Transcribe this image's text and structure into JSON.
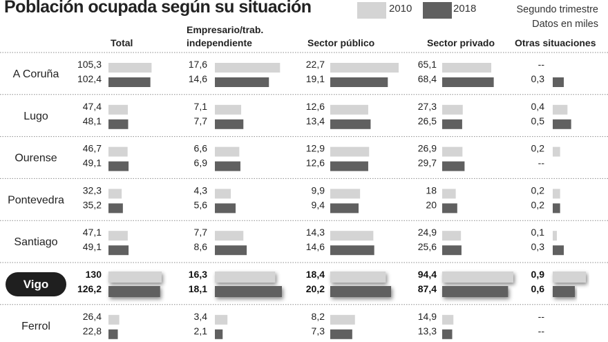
{
  "chart_data": {
    "type": "bar",
    "title": "Población ocupada según su situación",
    "legend": [
      {
        "label": "2010",
        "color": "#d4d4d4"
      },
      {
        "label": "2018",
        "color": "#606060"
      }
    ],
    "notes": [
      "Segundo trimestre",
      "Datos en miles"
    ],
    "columns": [
      "Total",
      "Empresario/trab. independiente",
      "Sector público",
      "Sector privado",
      "Otras situaciones"
    ],
    "column_header_lines": [
      [
        "Total"
      ],
      [
        "Empresario/trab.",
        "independiente"
      ],
      [
        "Sector público"
      ],
      [
        "Sector privado"
      ],
      [
        "Otras situaciones"
      ]
    ],
    "highlight_row": "Vigo",
    "rows": [
      {
        "name": "A Coruña",
        "values2010": [
          "105,3",
          "17,6",
          "22,7",
          "65,1",
          "--"
        ],
        "values2018": [
          "102,4",
          "14,6",
          "19,1",
          "68,4",
          "0,3"
        ]
      },
      {
        "name": "Lugo",
        "values2010": [
          "47,4",
          "7,1",
          "12,6",
          "27,3",
          "0,4"
        ],
        "values2018": [
          "48,1",
          "7,7",
          "13,4",
          "26,5",
          "0,5"
        ]
      },
      {
        "name": "Ourense",
        "values2010": [
          "46,7",
          "6,6",
          "12,9",
          "26,9",
          "0,2"
        ],
        "values2018": [
          "49,1",
          "6,9",
          "12,6",
          "29,7",
          "--"
        ]
      },
      {
        "name": "Pontevedra",
        "values2010": [
          "32,3",
          "4,3",
          "9,9",
          "18",
          "0,2"
        ],
        "values2018": [
          "35,2",
          "5,6",
          "9,4",
          "20",
          "0,2"
        ]
      },
      {
        "name": "Santiago",
        "values2010": [
          "47,1",
          "7,7",
          "14,3",
          "24,9",
          "0,1"
        ],
        "values2018": [
          "49,1",
          "8,6",
          "14,6",
          "25,6",
          "0,3"
        ]
      },
      {
        "name": "Vigo",
        "values2010": [
          "130",
          "16,3",
          "18,4",
          "94,4",
          "0,9"
        ],
        "values2018": [
          "126,2",
          "18,1",
          "20,2",
          "87,4",
          "0,6"
        ]
      },
      {
        "name": "Ferrol",
        "values2010": [
          "26,4",
          "3,4",
          "8,2",
          "14,9",
          "--"
        ],
        "values2018": [
          "22,8",
          "2,1",
          "7,3",
          "13,3",
          "--"
        ]
      }
    ]
  }
}
